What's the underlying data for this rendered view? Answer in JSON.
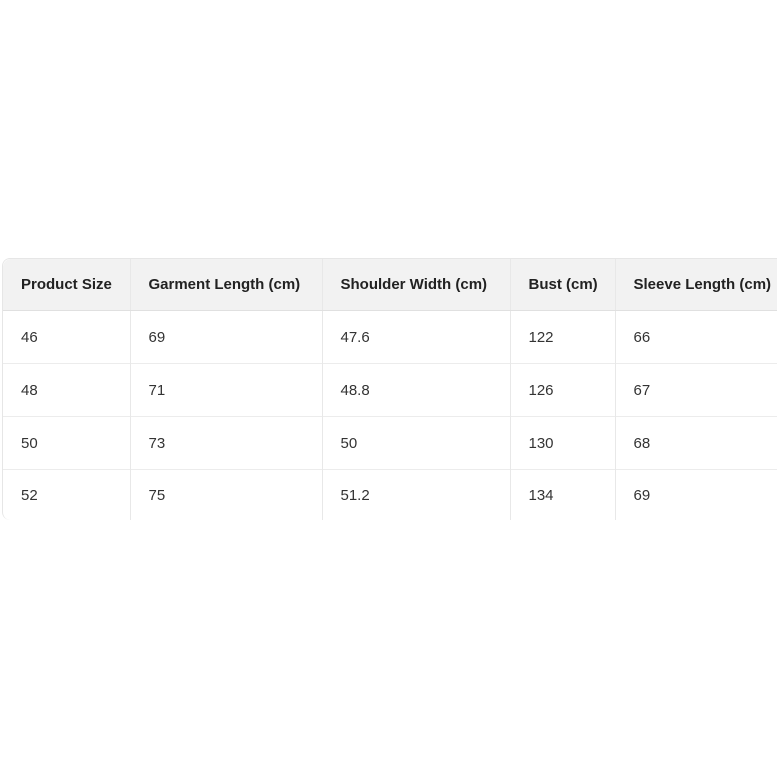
{
  "size_table": {
    "headers": [
      "Product Size",
      "Garment Length (cm)",
      "Shoulder Width (cm)",
      "Bust (cm)",
      "Sleeve Length (cm)"
    ],
    "rows": [
      [
        "46",
        "69",
        "47.6",
        "122",
        "66"
      ],
      [
        "48",
        "71",
        "48.8",
        "126",
        "67"
      ],
      [
        "50",
        "73",
        "50",
        "130",
        "68"
      ],
      [
        "52",
        "75",
        "51.2",
        "134",
        "69"
      ]
    ]
  }
}
